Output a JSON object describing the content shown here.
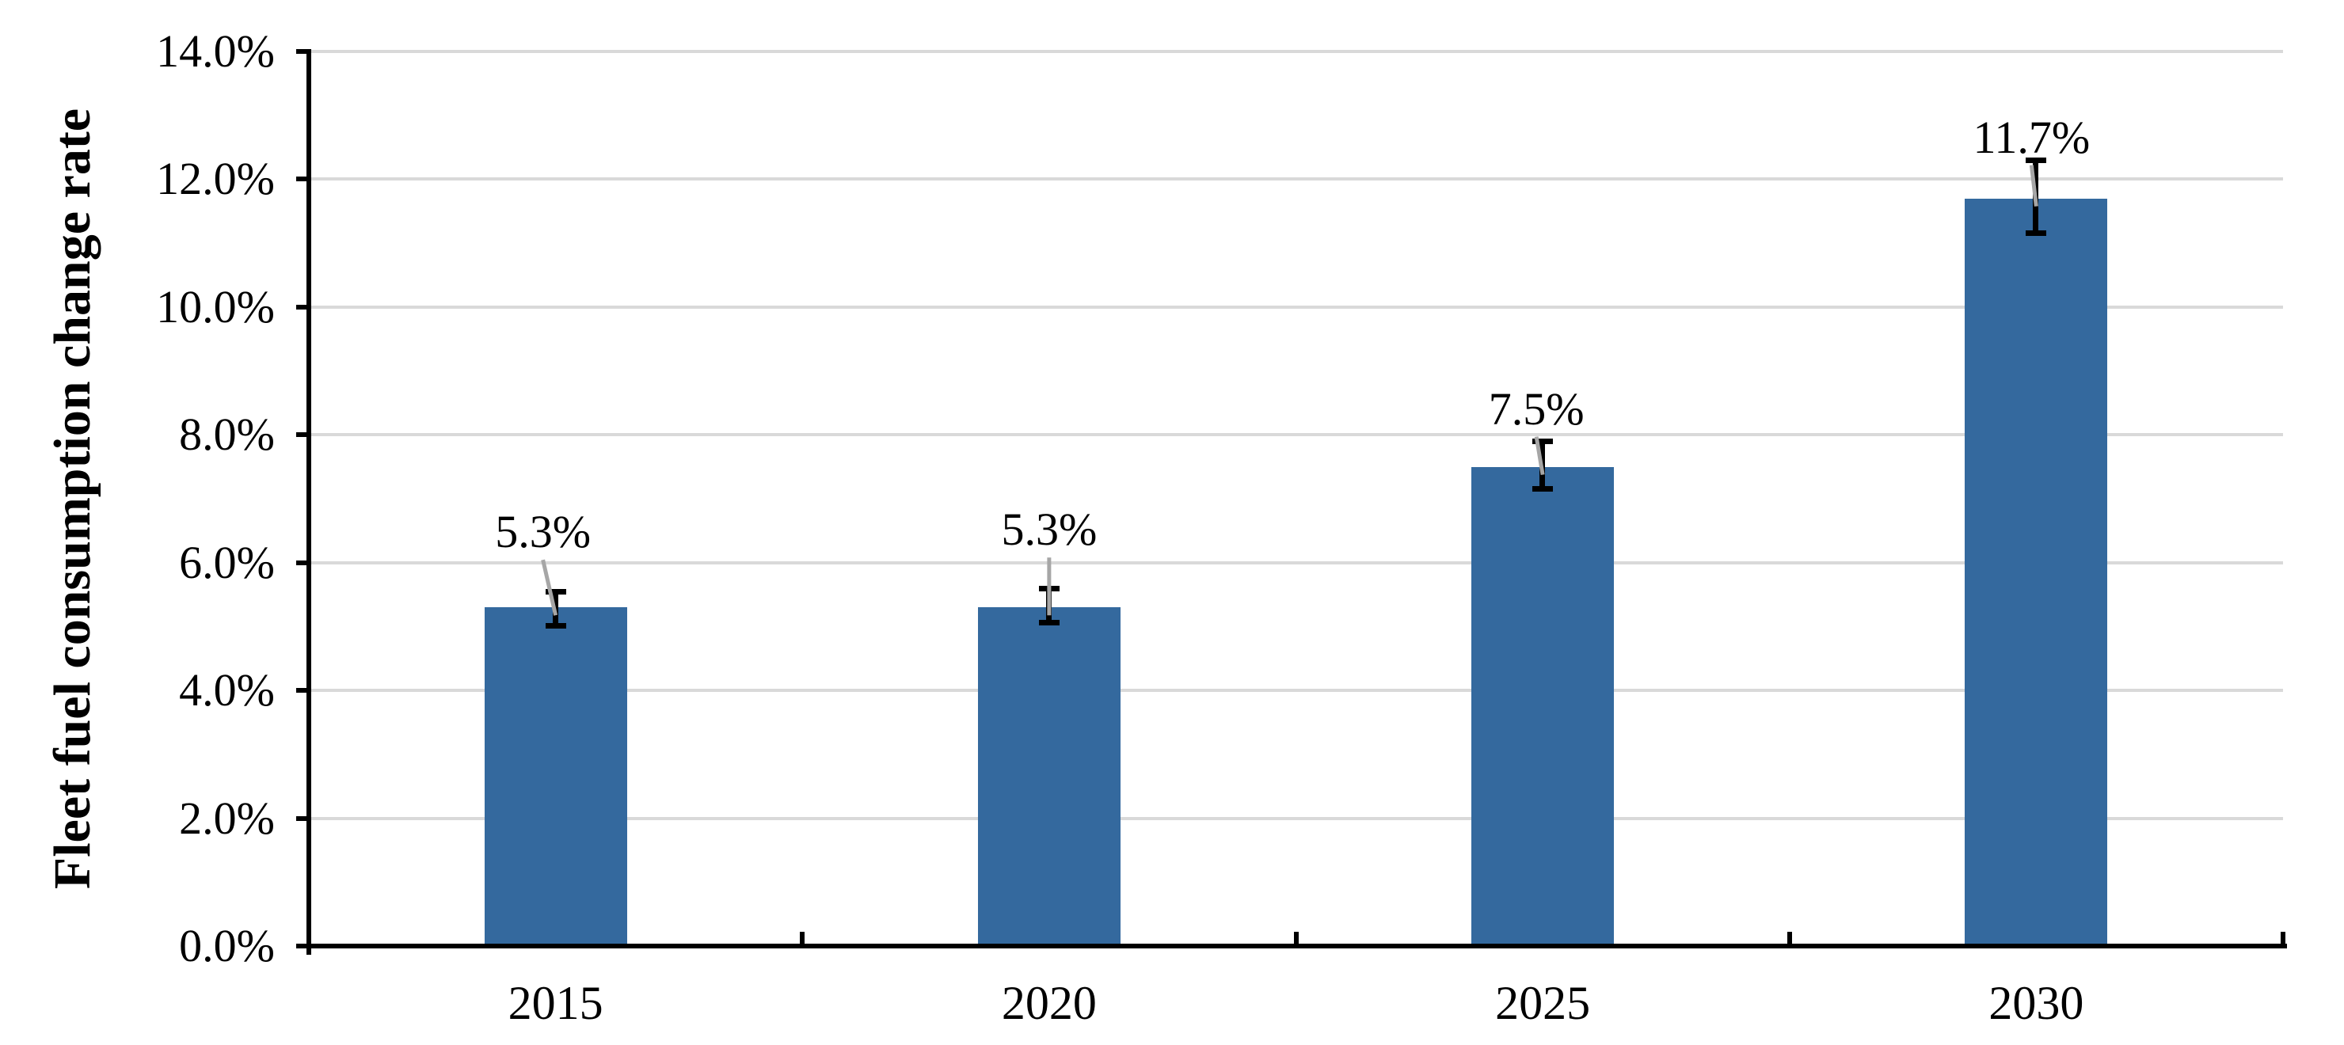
{
  "chart_data": {
    "type": "bar",
    "ylabel": "Fleet fuel consumption change rate",
    "categories": [
      "2015",
      "2020",
      "2025",
      "2030"
    ],
    "values": [
      5.3,
      5.3,
      7.5,
      11.7
    ],
    "data_labels": [
      "5.3%",
      "5.3%",
      "7.5%",
      "11.7%"
    ],
    "error_low": [
      5.0,
      5.05,
      7.15,
      11.15
    ],
    "error_high": [
      5.55,
      5.6,
      7.9,
      12.3
    ],
    "ylim": [
      0,
      14
    ],
    "ytick_step": 2,
    "ytick_labels": [
      "0.0%",
      "2.0%",
      "4.0%",
      "6.0%",
      "8.0%",
      "10.0%",
      "12.0%",
      "14.0%"
    ],
    "grid": true,
    "legend": "none",
    "colors": {
      "bar": "#34699E",
      "gridline": "#D9D9D9",
      "axis": "#000000",
      "error_bar": "#000000",
      "leader_line": "#A6A6A6",
      "text": "#000000",
      "background": "#FFFFFF"
    }
  }
}
